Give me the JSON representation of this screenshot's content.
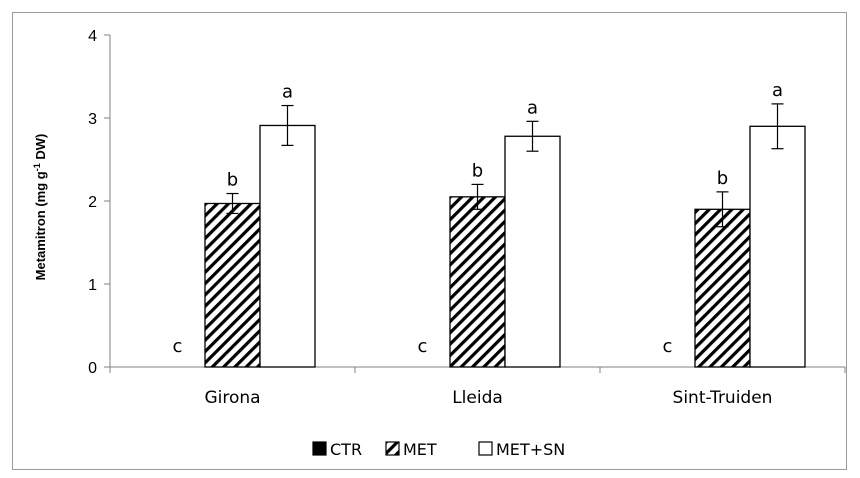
{
  "chart_data": {
    "type": "bar",
    "title": "",
    "xlabel": "",
    "ylabel": {
      "text": "Metamitron (mg g",
      "sup": "-1",
      "text_after": " DW)"
    },
    "ylim": [
      0,
      4
    ],
    "yticks": [
      0,
      1,
      2,
      3,
      4
    ],
    "grid": false,
    "legend_position": "bottom",
    "categories": [
      "Girona",
      "Lleida",
      "Sint-Truiden"
    ],
    "series": [
      {
        "name": "CTR",
        "fill": "solid",
        "color": "#000000",
        "values": [
          0,
          0,
          0
        ],
        "errors": [
          0,
          0,
          0
        ],
        "letters": [
          "c",
          "c",
          "c"
        ]
      },
      {
        "name": "MET",
        "fill": "hatched",
        "color": "#000000",
        "values": [
          1.97,
          2.05,
          1.9
        ],
        "errors": [
          0.12,
          0.15,
          0.21
        ],
        "letters": [
          "b",
          "b",
          "b"
        ]
      },
      {
        "name": "MET+SN",
        "fill": "white",
        "color": "#ffffff",
        "values": [
          2.91,
          2.78,
          2.9
        ],
        "errors": [
          0.24,
          0.18,
          0.27
        ],
        "letters": [
          "a",
          "a",
          "a"
        ]
      }
    ]
  }
}
